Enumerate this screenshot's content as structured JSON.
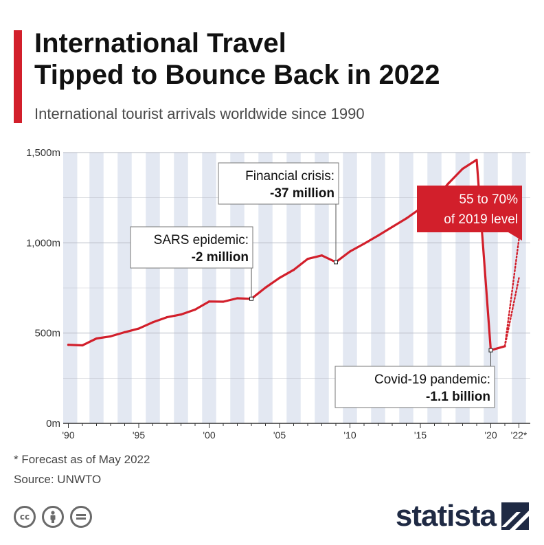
{
  "header": {
    "title_line1": "International Travel",
    "title_line2": "Tipped to Bounce Back in 2022",
    "subtitle": "International tourist arrivals worldwide since 1990"
  },
  "chart_data": {
    "type": "line",
    "title": "International Travel Tipped to Bounce Back in 2022",
    "subtitle": "International tourist arrivals worldwide since 1990",
    "xlabel": "",
    "ylabel": "",
    "unit": "m",
    "ylim": [
      0,
      1500
    ],
    "xlim": [
      1990,
      2022
    ],
    "yticks": [
      {
        "value": 0,
        "label": "0m"
      },
      {
        "value": 500,
        "label": "500m"
      },
      {
        "value": 1000,
        "label": "1,000m"
      },
      {
        "value": 1500,
        "label": "1,500m"
      }
    ],
    "xticks": [
      {
        "value": 1990,
        "label": "'90"
      },
      {
        "value": 1995,
        "label": "'95"
      },
      {
        "value": 2000,
        "label": "'00"
      },
      {
        "value": 2005,
        "label": "'05"
      },
      {
        "value": 2010,
        "label": "'10"
      },
      {
        "value": 2015,
        "label": "'15"
      },
      {
        "value": 2020,
        "label": "'20"
      },
      {
        "value": 2022,
        "label": "'22*"
      }
    ],
    "grid": true,
    "series": [
      {
        "values": [
          {
            "x": 1990,
            "y": 435
          },
          {
            "x": 1991,
            "y": 432
          },
          {
            "x": 1992,
            "y": 470
          },
          {
            "x": 1993,
            "y": 482
          },
          {
            "x": 1994,
            "y": 505
          },
          {
            "x": 1995,
            "y": 525
          },
          {
            "x": 1996,
            "y": 560
          },
          {
            "x": 1997,
            "y": 588
          },
          {
            "x": 1998,
            "y": 603
          },
          {
            "x": 1999,
            "y": 630
          },
          {
            "x": 2000,
            "y": 675
          },
          {
            "x": 2001,
            "y": 674
          },
          {
            "x": 2002,
            "y": 693
          },
          {
            "x": 2003,
            "y": 690
          },
          {
            "x": 2004,
            "y": 752
          },
          {
            "x": 2005,
            "y": 806
          },
          {
            "x": 2006,
            "y": 850
          },
          {
            "x": 2007,
            "y": 911
          },
          {
            "x": 2008,
            "y": 930
          },
          {
            "x": 2009,
            "y": 893
          },
          {
            "x": 2010,
            "y": 952
          },
          {
            "x": 2011,
            "y": 995
          },
          {
            "x": 2012,
            "y": 1040
          },
          {
            "x": 2013,
            "y": 1088
          },
          {
            "x": 2014,
            "y": 1135
          },
          {
            "x": 2015,
            "y": 1190
          },
          {
            "x": 2016,
            "y": 1240
          },
          {
            "x": 2017,
            "y": 1330
          },
          {
            "x": 2018,
            "y": 1410
          },
          {
            "x": 2019,
            "y": 1460
          },
          {
            "x": 2020,
            "y": 405
          },
          {
            "x": 2021,
            "y": 427
          }
        ]
      }
    ],
    "forecast": {
      "from": {
        "x": 2021,
        "y": 427
      },
      "low": {
        "x": 2022,
        "y": 805
      },
      "high": {
        "x": 2022,
        "y": 1020
      }
    },
    "annotations": [
      {
        "id": "sars",
        "x": 2003,
        "y": 690,
        "line1": "SARS epidemic:",
        "line2": "-2 million"
      },
      {
        "id": "financial",
        "x": 2009,
        "y": 893,
        "line1": "Financial crisis:",
        "line2": "-37 million"
      },
      {
        "id": "covid",
        "x": 2020,
        "y": 405,
        "line1": "Covid-19 pandemic:",
        "line2": "-1.1 billion"
      }
    ],
    "forecast_label": {
      "line1": "55 to 70%",
      "line2": "of 2019 level"
    },
    "colors": {
      "line": "#d21f2b",
      "band": "#e3e8f2",
      "grid": "#b5b9c2",
      "axis": "#333333",
      "callout_fill": "#d21f2b"
    }
  },
  "footer": {
    "footnote": "* Forecast as of May 2022",
    "source": "Source: UNWTO",
    "brand": "statista",
    "cc_icons": [
      "cc-icon",
      "attribution-icon",
      "no-derivatives-icon"
    ]
  }
}
